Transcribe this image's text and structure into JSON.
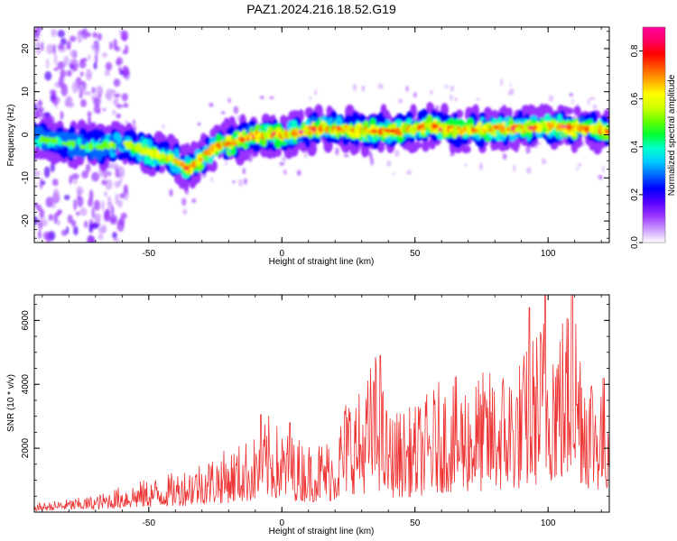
{
  "title": "PAZ1.2024.216.18.52.G19",
  "chart_data": [
    {
      "type": "heatmap",
      "xlabel": "Height of straight line (km)",
      "ylabel": "Frequency (Hz)",
      "xlim": [
        -93,
        123
      ],
      "ylim": [
        -25,
        25
      ],
      "x_ticks": [
        -50,
        0,
        50,
        100
      ],
      "x_tick_labels": [
        "-50",
        "0",
        "50",
        "100"
      ],
      "y_ticks": [
        -20,
        -10,
        0,
        10,
        20
      ],
      "y_tick_labels": [
        "-20",
        "-10",
        "0",
        "10",
        "20"
      ],
      "grid": false,
      "colorbar": {
        "label": "Normalized spectral amplitude",
        "range": [
          0,
          0.9
        ],
        "ticks": [
          0,
          0.2,
          0.4,
          0.6,
          0.8
        ],
        "tick_labels": [
          "0.0",
          "0.2",
          "0.4",
          "0.6",
          "0.8"
        ],
        "colors": [
          "#ffffff",
          "#cc99ff",
          "#9933ff",
          "#5500ff",
          "#0000ff",
          "#0066ff",
          "#00ccff",
          "#00ffcc",
          "#00ff33",
          "#66ff00",
          "#ccff00",
          "#ffff00",
          "#ffaa00",
          "#ff5500",
          "#ff0000",
          "#ff0066",
          "#ff0099"
        ]
      },
      "ridge": {
        "x": [
          -93,
          -80,
          -70,
          -60,
          -55,
          -50,
          -45,
          -40,
          -35,
          -33,
          -30,
          -25,
          -20,
          -15,
          -10,
          -5,
          0,
          5,
          10,
          15,
          20,
          25,
          30,
          35,
          40,
          45,
          50,
          55,
          60,
          65,
          70,
          80,
          90,
          100,
          110,
          120,
          123
        ],
        "y": [
          -1,
          -2,
          -3,
          -2,
          -3,
          -4,
          -5,
          -6,
          -8,
          -7,
          -5,
          -3,
          -2,
          -1,
          0,
          0,
          0,
          0.5,
          1,
          1.5,
          1,
          1.5,
          1,
          1,
          1,
          1,
          1.5,
          2,
          1.5,
          1,
          1,
          1.5,
          1.5,
          2,
          1.5,
          1,
          1
        ]
      },
      "scatter_region": {
        "x_range": [
          -93,
          -58
        ],
        "y_range": [
          -25,
          25
        ]
      }
    },
    {
      "type": "line",
      "xlabel": "Height of straight line (km)",
      "ylabel": "SNR (10 * v/v)",
      "xlim": [
        -93,
        123
      ],
      "ylim": [
        0,
        6800
      ],
      "x_ticks": [
        -50,
        0,
        50,
        100
      ],
      "x_tick_labels": [
        "-50",
        "0",
        "50",
        "100"
      ],
      "y_ticks": [
        2000,
        4000,
        6000
      ],
      "y_tick_labels": [
        "2000",
        "4000",
        "6000"
      ],
      "grid": false,
      "line_color": "#ee3333",
      "envelope": {
        "x": [
          -93,
          -80,
          -70,
          -60,
          -50,
          -40,
          -30,
          -20,
          -10,
          -5,
          0,
          10,
          20,
          25,
          30,
          35,
          40,
          50,
          60,
          70,
          80,
          90,
          95,
          100,
          105,
          110,
          115,
          120,
          123
        ],
        "y": [
          250,
          400,
          500,
          800,
          1000,
          1200,
          1600,
          1900,
          2300,
          2900,
          2500,
          2100,
          2300,
          3800,
          3600,
          4900,
          3000,
          3200,
          4000,
          4100,
          4300,
          4700,
          5500,
          6500,
          6000,
          6800,
          4800,
          4300,
          4000
        ]
      },
      "peaks": [
        {
          "x": 37,
          "y": 4900
        },
        {
          "x": 93,
          "y": 6400
        },
        {
          "x": 99,
          "y": 6800
        },
        {
          "x": 109,
          "y": 6800
        },
        {
          "x": -8,
          "y": 3050
        },
        {
          "x": 3,
          "y": 2800
        }
      ]
    }
  ]
}
